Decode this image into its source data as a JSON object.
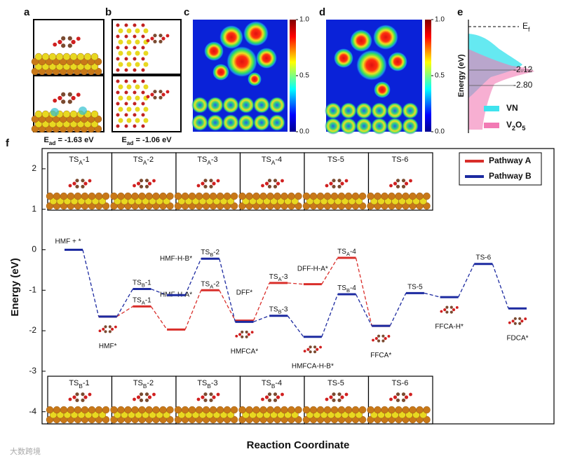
{
  "panels": {
    "a": {
      "label": "a",
      "caption": [
        "E",
        {
          "sub": "ad"
        },
        " = -1.63 eV"
      ]
    },
    "b": {
      "label": "b",
      "caption": [
        "E",
        {
          "sub": "ad"
        },
        " = -1.06 eV"
      ]
    },
    "c": {
      "label": "c",
      "colorbar_ticks": [
        {
          "value": 1,
          "label": "1.0"
        },
        0.5,
        {
          "value": 0,
          "label": "0.0"
        }
      ]
    },
    "d": {
      "label": "d",
      "colorbar_ticks": [
        {
          "value": 1,
          "label": "1.0"
        },
        0.5,
        {
          "value": 0,
          "label": "0.0"
        }
      ]
    },
    "e": {
      "label": "e",
      "ylabel": "Energy (eV)",
      "fermi": [
        "E",
        {
          "sub": "f"
        }
      ],
      "peaks": [
        -2.12,
        {
          "value": -2.8,
          "label": "-2.80"
        }
      ],
      "legend": [
        {
          "name": [
            "VN"
          ],
          "color": "#3fe3ee"
        },
        {
          "name": [
            "V",
            {
              "sub": "2"
            },
            "O",
            {
              "sub": "5"
            }
          ],
          "color": "#f27ab4"
        }
      ]
    }
  },
  "chart_data": {
    "type": "energy-diagram",
    "label": "f",
    "xlabel": "Reaction Coordinate",
    "ylabel": "Energy (eV)",
    "ylim": [
      -4.3,
      2.5
    ],
    "yticks": [
      -4,
      -3,
      -2,
      -1,
      0,
      1,
      2
    ],
    "series": [
      {
        "name": "Pathway A",
        "color": "#d92e2a",
        "values": [
          null,
          -1.65,
          -1.4,
          -1.97,
          -1.0,
          -1.75,
          -0.82,
          -0.85,
          -0.2,
          -1.88,
          null,
          null,
          null,
          null
        ],
        "labels": [
          null,
          null,
          [
            "TS",
            {
              "sub": "A"
            },
            "-1"
          ],
          [
            "HMF-H-A*"
          ],
          [
            "TS",
            {
              "sub": "A"
            },
            "-2"
          ],
          [
            "DFF*"
          ],
          [
            "TS",
            {
              "sub": "A"
            },
            "-3"
          ],
          [
            "DFF-H-A*"
          ],
          [
            "TS",
            {
              "sub": "A"
            },
            "-4"
          ],
          null,
          null,
          null,
          null,
          null
        ]
      },
      {
        "name": "Pathway B",
        "color": "#1c2aa0",
        "values": [
          0,
          -1.65,
          -0.97,
          -1.12,
          -0.22,
          -1.78,
          -1.63,
          -2.15,
          -1.1,
          -1.88,
          -1.07,
          -1.17,
          -0.35,
          -1.45
        ],
        "labels": [
          [
            "HMF + *"
          ],
          [
            "HMF*"
          ],
          [
            "TS",
            {
              "sub": "B"
            },
            "-1"
          ],
          [
            "HMF-H-B*"
          ],
          [
            "TS",
            {
              "sub": "B"
            },
            "-2"
          ],
          [
            "HMFCA*"
          ],
          [
            "TS",
            {
              "sub": "B"
            },
            "-3"
          ],
          [
            "HMFCA-H-B*"
          ],
          [
            "TS",
            {
              "sub": "B"
            },
            "-4"
          ],
          [
            "FFCA*"
          ],
          [
            "TS-5"
          ],
          [
            "FFCA-H*"
          ],
          [
            "TS-6"
          ],
          [
            "FDCA*"
          ]
        ]
      }
    ],
    "insets_top": [
      [
        "TS",
        {
          "sub": "A"
        },
        "-1"
      ],
      [
        "TS",
        {
          "sub": "A"
        },
        "-2"
      ],
      [
        "TS",
        {
          "sub": "A"
        },
        "-3"
      ],
      [
        "TS",
        {
          "sub": "A"
        },
        "-4"
      ],
      [
        "TS-5"
      ],
      [
        "TS-6"
      ]
    ],
    "insets_bottom": [
      [
        "TS",
        {
          "sub": "B"
        },
        "-1"
      ],
      [
        "TS",
        {
          "sub": "B"
        },
        "-2"
      ],
      [
        "TS",
        {
          "sub": "B"
        },
        "-3"
      ],
      [
        "TS",
        {
          "sub": "B"
        },
        "-4"
      ],
      [
        "TS-5"
      ],
      [
        "TS-6"
      ]
    ]
  },
  "watermark": "大数跨境"
}
